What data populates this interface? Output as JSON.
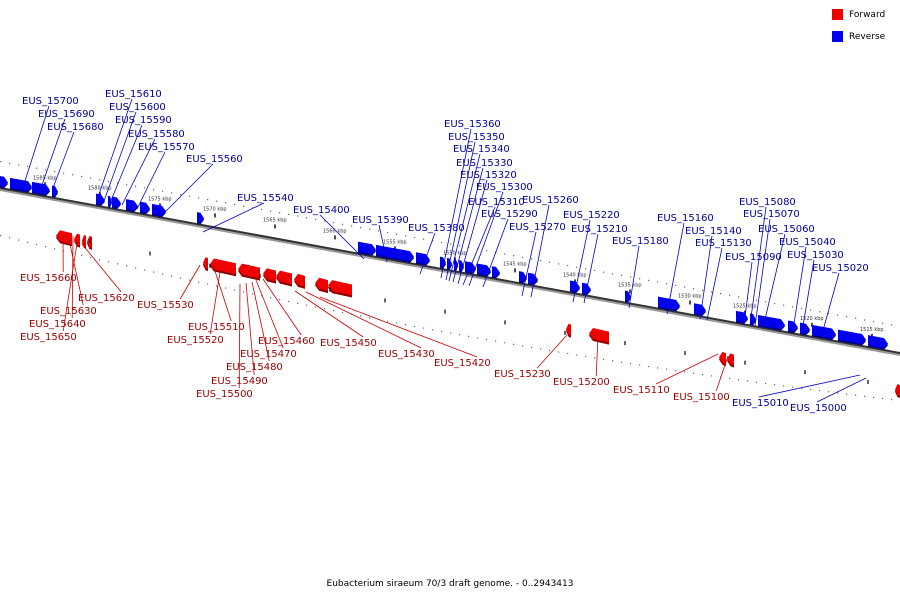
{
  "legend": {
    "forward": {
      "label": "Forward",
      "color": "#ee0000"
    },
    "reverse": {
      "label": "Reverse",
      "color": "#0000ee"
    }
  },
  "caption": "Eubacterium siraeum 70/3 draft genome. - 0..2943413",
  "scale_marks": [
    "1585 kbp",
    "1580 kbp",
    "1575 kbp",
    "1570 kbp",
    "1565 kbp",
    "1560 kbp",
    "1555 kbp",
    "1550 kbp",
    "1545 kbp",
    "1540 kbp",
    "1535 kbp",
    "1530 kbp",
    "1525 kbp",
    "1520 kbp",
    "1515 kbp"
  ],
  "genes": {
    "reverse": [
      "EUS_15700",
      "EUS_15690",
      "EUS_15680",
      "EUS_15610",
      "EUS_15600",
      "EUS_15590",
      "EUS_15580",
      "EUS_15570",
      "EUS_15560",
      "EUS_15540",
      "EUS_15400",
      "EUS_15390",
      "EUS_15380",
      "EUS_15360",
      "EUS_15350",
      "EUS_15340",
      "EUS_15330",
      "EUS_15320",
      "EUS_15310",
      "EUS_15300",
      "EUS_15290",
      "EUS_15270",
      "EUS_15260",
      "EUS_15220",
      "EUS_15210",
      "EUS_15180",
      "EUS_15160",
      "EUS_15140",
      "EUS_15130",
      "EUS_15090",
      "EUS_15080",
      "EUS_15070",
      "EUS_15060",
      "EUS_15040",
      "EUS_15030",
      "EUS_15020",
      "EUS_15010",
      "EUS_15000"
    ],
    "forward": [
      "EUS_15660",
      "EUS_15630",
      "EUS_15640",
      "EUS_15650",
      "EUS_15620",
      "EUS_15530",
      "EUS_15510",
      "EUS_15520",
      "EUS_15460",
      "EUS_15470",
      "EUS_15480",
      "EUS_15490",
      "EUS_15500",
      "EUS_15450",
      "EUS_15430",
      "EUS_15420",
      "EUS_15230",
      "EUS_15200",
      "EUS_15110",
      "EUS_15100"
    ]
  }
}
